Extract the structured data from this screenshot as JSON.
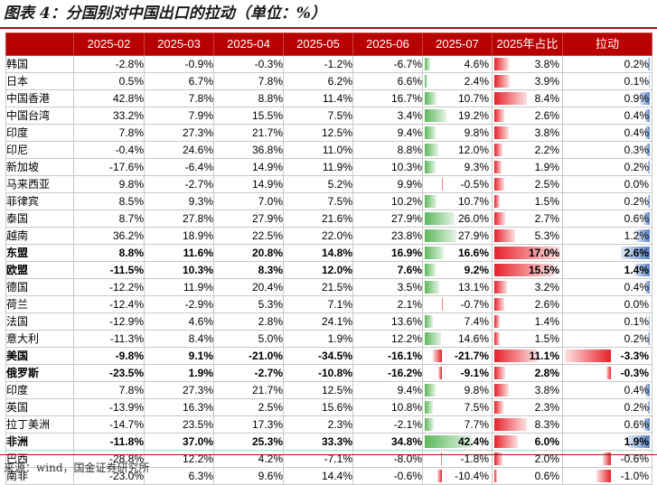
{
  "title": "图表 4：分国别对中国出口的拉动（单位：%）",
  "headers": [
    "",
    "2025-02",
    "2025-03",
    "2025-04",
    "2025-05",
    "2025-06",
    "2025-07",
    "2025年占比",
    "拉动"
  ],
  "rows": [
    {
      "name": "韩国",
      "m02": "-2.8%",
      "m03": "-0.9%",
      "m04": "-0.3%",
      "m05": "-1.2%",
      "m06": "-6.7%",
      "m07": "4.6%",
      "share": "3.8%",
      "pull": "0.2%",
      "bold": false
    },
    {
      "name": "日本",
      "m02": "0.5%",
      "m03": "6.7%",
      "m04": "7.8%",
      "m05": "6.2%",
      "m06": "6.6%",
      "m07": "2.4%",
      "share": "3.9%",
      "pull": "0.1%",
      "bold": false
    },
    {
      "name": "中国香港",
      "m02": "42.8%",
      "m03": "7.8%",
      "m04": "8.8%",
      "m05": "11.4%",
      "m06": "16.7%",
      "m07": "10.7%",
      "share": "8.4%",
      "pull": "0.9%",
      "bold": false
    },
    {
      "name": "中国台湾",
      "m02": "33.2%",
      "m03": "7.9%",
      "m04": "15.5%",
      "m05": "7.5%",
      "m06": "3.4%",
      "m07": "19.2%",
      "share": "2.6%",
      "pull": "0.4%",
      "bold": false
    },
    {
      "name": "印度",
      "m02": "7.8%",
      "m03": "27.3%",
      "m04": "21.7%",
      "m05": "12.5%",
      "m06": "9.4%",
      "m07": "9.8%",
      "share": "3.8%",
      "pull": "0.4%",
      "bold": false
    },
    {
      "name": "印尼",
      "m02": "-0.4%",
      "m03": "24.6%",
      "m04": "36.8%",
      "m05": "11.0%",
      "m06": "8.8%",
      "m07": "12.0%",
      "share": "2.2%",
      "pull": "0.3%",
      "bold": false
    },
    {
      "name": "新加坡",
      "m02": "-17.6%",
      "m03": "-6.4%",
      "m04": "14.9%",
      "m05": "11.9%",
      "m06": "10.3%",
      "m07": "9.3%",
      "share": "1.9%",
      "pull": "0.2%",
      "bold": false
    },
    {
      "name": "马来西亚",
      "m02": "9.8%",
      "m03": "-2.7%",
      "m04": "14.9%",
      "m05": "5.2%",
      "m06": "9.9%",
      "m07": "-0.5%",
      "share": "2.5%",
      "pull": "0.0%",
      "bold": false
    },
    {
      "name": "菲律宾",
      "m02": "8.5%",
      "m03": "9.3%",
      "m04": "7.0%",
      "m05": "7.5%",
      "m06": "10.2%",
      "m07": "10.7%",
      "share": "1.5%",
      "pull": "0.2%",
      "bold": false
    },
    {
      "name": "泰国",
      "m02": "8.7%",
      "m03": "27.8%",
      "m04": "27.9%",
      "m05": "21.6%",
      "m06": "27.9%",
      "m07": "26.0%",
      "share": "2.7%",
      "pull": "0.6%",
      "bold": false
    },
    {
      "name": "越南",
      "m02": "36.2%",
      "m03": "18.9%",
      "m04": "22.5%",
      "m05": "22.0%",
      "m06": "23.8%",
      "m07": "27.9%",
      "share": "5.3%",
      "pull": "1.2%",
      "bold": false
    },
    {
      "name": "东盟",
      "m02": "8.8%",
      "m03": "11.6%",
      "m04": "20.8%",
      "m05": "14.8%",
      "m06": "16.9%",
      "m07": "16.6%",
      "share": "17.0%",
      "pull": "2.6%",
      "bold": true
    },
    {
      "name": "欧盟",
      "m02": "-11.5%",
      "m03": "10.3%",
      "m04": "8.3%",
      "m05": "12.0%",
      "m06": "7.6%",
      "m07": "9.2%",
      "share": "15.5%",
      "pull": "1.4%",
      "bold": true
    },
    {
      "name": "德国",
      "m02": "-12.2%",
      "m03": "11.9%",
      "m04": "20.4%",
      "m05": "21.5%",
      "m06": "3.5%",
      "m07": "13.1%",
      "share": "3.2%",
      "pull": "0.4%",
      "bold": false
    },
    {
      "name": "荷兰",
      "m02": "-12.4%",
      "m03": "-2.9%",
      "m04": "5.3%",
      "m05": "7.1%",
      "m06": "2.1%",
      "m07": "-0.7%",
      "share": "2.6%",
      "pull": "0.0%",
      "bold": false
    },
    {
      "name": "法国",
      "m02": "-12.9%",
      "m03": "4.6%",
      "m04": "2.8%",
      "m05": "24.1%",
      "m06": "13.6%",
      "m07": "7.4%",
      "share": "1.4%",
      "pull": "0.1%",
      "bold": false
    },
    {
      "name": "意大利",
      "m02": "-11.3%",
      "m03": "8.4%",
      "m04": "5.0%",
      "m05": "1.9%",
      "m06": "12.2%",
      "m07": "14.6%",
      "share": "1.5%",
      "pull": "0.2%",
      "bold": false
    },
    {
      "name": "美国",
      "m02": "-9.8%",
      "m03": "9.1%",
      "m04": "-21.0%",
      "m05": "-34.5%",
      "m06": "-16.1%",
      "m07": "-21.7%",
      "share": "11.1%",
      "pull": "-3.3%",
      "bold": true
    },
    {
      "name": "俄罗斯",
      "m02": "-23.5%",
      "m03": "1.9%",
      "m04": "-2.7%",
      "m05": "-10.8%",
      "m06": "-16.2%",
      "m07": "-9.1%",
      "share": "2.8%",
      "pull": "-0.3%",
      "bold": true
    },
    {
      "name": "印度",
      "m02": "7.8%",
      "m03": "27.3%",
      "m04": "21.7%",
      "m05": "12.5%",
      "m06": "9.4%",
      "m07": "9.8%",
      "share": "3.8%",
      "pull": "0.4%",
      "bold": false
    },
    {
      "name": "英国",
      "m02": "-13.9%",
      "m03": "16.3%",
      "m04": "2.5%",
      "m05": "15.6%",
      "m06": "10.8%",
      "m07": "7.5%",
      "share": "2.3%",
      "pull": "0.2%",
      "bold": false
    },
    {
      "name": "拉丁美洲",
      "m02": "-14.7%",
      "m03": "23.5%",
      "m04": "17.3%",
      "m05": "2.3%",
      "m06": "-2.1%",
      "m07": "7.7%",
      "share": "8.3%",
      "pull": "0.6%",
      "bold": false
    },
    {
      "name": "非洲",
      "m02": "-11.8%",
      "m03": "37.0%",
      "m04": "25.3%",
      "m05": "33.3%",
      "m06": "34.8%",
      "m07": "42.4%",
      "share": "6.0%",
      "pull": "1.9%",
      "bold": true
    },
    {
      "name": "巴西",
      "m02": "-28.8%",
      "m03": "12.2%",
      "m04": "4.2%",
      "m05": "-7.1%",
      "m06": "-8.0%",
      "m07": "-1.8%",
      "share": "2.0%",
      "pull": "-0.6%",
      "bold": false
    },
    {
      "name": "南非",
      "m02": "-23.0%",
      "m03": "6.3%",
      "m04": "9.6%",
      "m05": "14.4%",
      "m06": "-0.6%",
      "m07": "-10.4%",
      "share": "0.6%",
      "pull": "-1.0%",
      "bold": false
    }
  ],
  "source": "来源：wind，国金证券研究所",
  "colors": {
    "header": "#b90000",
    "positive_m07": "#5cb85c",
    "negative": "#e8202a",
    "share": "#e8202a",
    "pull_positive": "#5b86c9"
  }
}
